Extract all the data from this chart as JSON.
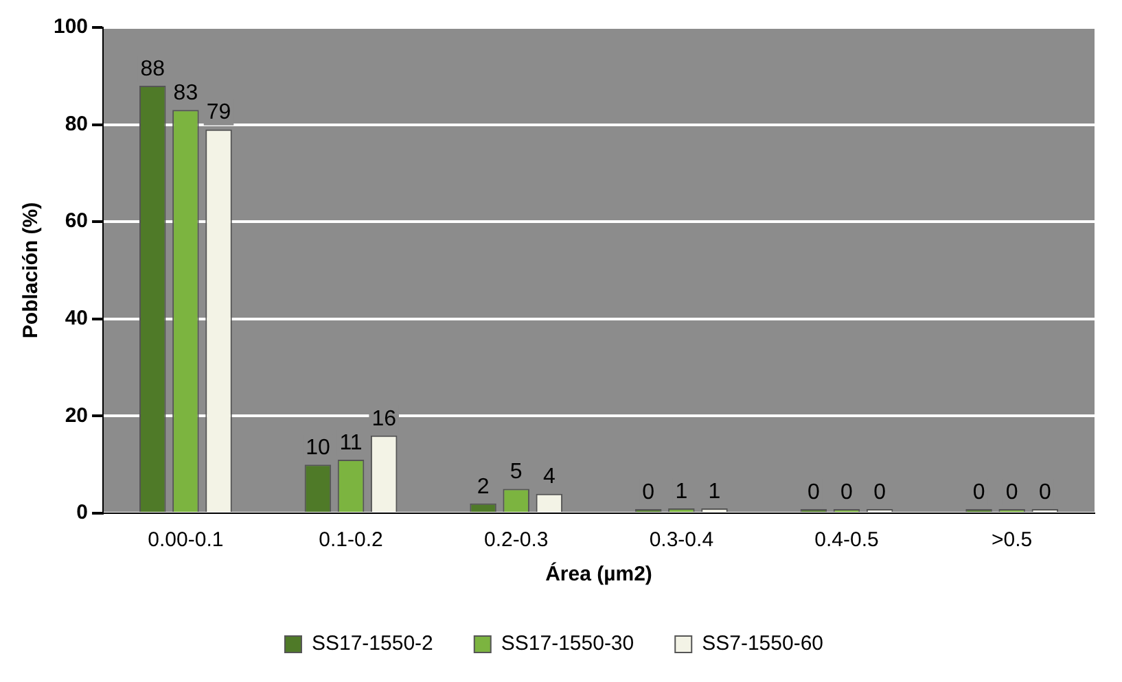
{
  "chart_data": {
    "type": "bar",
    "xlabel": "Área (µm2)",
    "ylabel": "Población (%)",
    "categories": [
      "0.00-0.1",
      "0.1-0.2",
      "0.2-0.3",
      "0.3-0.4",
      "0.4-0.5",
      ">0.5"
    ],
    "series": [
      {
        "name": "SS17-1550-2",
        "color": "#4f7a28",
        "values": [
          88,
          10,
          2,
          0,
          0,
          0
        ]
      },
      {
        "name": "SS17-1550-30",
        "color": "#7cb440",
        "values": [
          83,
          11,
          5,
          1,
          0,
          0
        ]
      },
      {
        "name": "SS7-1550-60",
        "color": "#f3f3e6",
        "values": [
          79,
          16,
          4,
          1,
          0,
          0
        ]
      }
    ],
    "ylim": [
      0,
      100
    ],
    "yticks": [
      0,
      20,
      40,
      60,
      80,
      100
    ],
    "grid": "y",
    "legend": "bottom",
    "data_labels": true
  }
}
